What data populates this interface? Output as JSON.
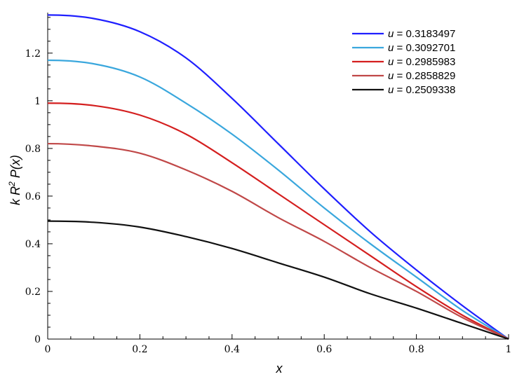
{
  "chart_data": {
    "type": "line",
    "title": "",
    "xlabel": "x",
    "ylabel": "k R² P(x)",
    "ylabel_parts": {
      "k": "k",
      "R": "R",
      "sup": "2",
      "P": "P(",
      "x": "x",
      "close": ")"
    },
    "xlim": [
      0,
      1
    ],
    "ylim": [
      0,
      1.37
    ],
    "xticks": [
      0,
      0.2,
      0.4,
      0.6,
      0.8,
      1
    ],
    "xtick_labels": [
      "0",
      "0.2",
      "0.4",
      "0.6",
      "0.8",
      "1"
    ],
    "yticks": [
      0,
      0.2,
      0.4,
      0.6,
      0.8,
      1,
      1.2
    ],
    "ytick_labels": [
      "0",
      "0.2",
      "0.4",
      "0.6",
      "0.8",
      "1",
      "1.2"
    ],
    "grid": false,
    "legend_position": "top-right",
    "legend_var": "u",
    "legend_eq": " = ",
    "series": [
      {
        "name": "0.3183497",
        "color": "#1f1fff",
        "x": [
          0,
          0.1,
          0.2,
          0.3,
          0.4,
          0.5,
          0.6,
          0.7,
          0.8,
          0.9,
          1
        ],
        "y": [
          1.36,
          1.345,
          1.29,
          1.18,
          1.01,
          0.82,
          0.63,
          0.45,
          0.29,
          0.14,
          0.0
        ]
      },
      {
        "name": "0.3092701",
        "color": "#3aa7dd",
        "x": [
          0,
          0.1,
          0.2,
          0.3,
          0.4,
          0.5,
          0.6,
          0.7,
          0.8,
          0.9,
          1
        ],
        "y": [
          1.17,
          1.155,
          1.1,
          0.99,
          0.86,
          0.71,
          0.55,
          0.4,
          0.26,
          0.12,
          0.0
        ]
      },
      {
        "name": "0.2985983",
        "color": "#d41f1f",
        "x": [
          0,
          0.1,
          0.2,
          0.3,
          0.4,
          0.5,
          0.6,
          0.7,
          0.8,
          0.9,
          1
        ],
        "y": [
          0.99,
          0.98,
          0.94,
          0.86,
          0.74,
          0.61,
          0.48,
          0.35,
          0.22,
          0.1,
          0.0
        ]
      },
      {
        "name": "0.2858829",
        "color": "#c04848",
        "x": [
          0,
          0.1,
          0.2,
          0.3,
          0.4,
          0.5,
          0.6,
          0.7,
          0.8,
          0.9,
          1
        ],
        "y": [
          0.82,
          0.81,
          0.78,
          0.71,
          0.62,
          0.51,
          0.41,
          0.3,
          0.2,
          0.09,
          0.0
        ]
      },
      {
        "name": "0.2509338",
        "color": "#111111",
        "x": [
          0,
          0.1,
          0.2,
          0.3,
          0.4,
          0.5,
          0.6,
          0.7,
          0.8,
          0.9,
          1
        ],
        "y": [
          0.495,
          0.49,
          0.47,
          0.43,
          0.38,
          0.32,
          0.26,
          0.19,
          0.13,
          0.065,
          0.0
        ]
      }
    ]
  }
}
